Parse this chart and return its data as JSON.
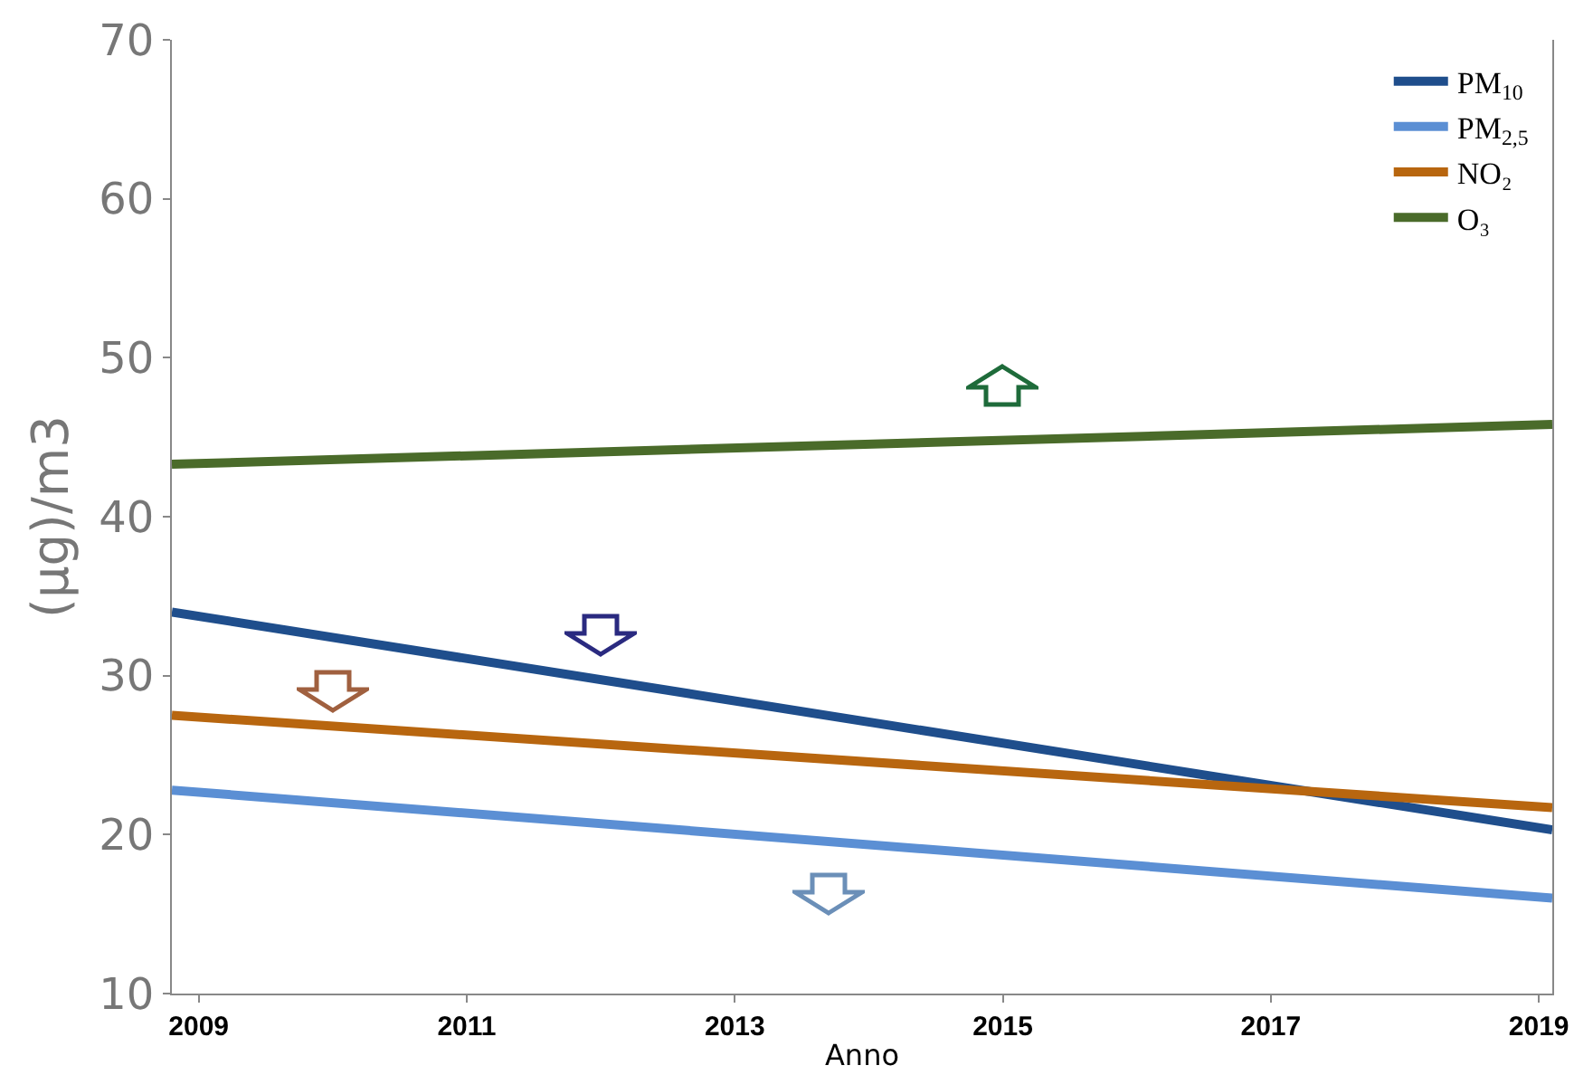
{
  "chart_data": {
    "type": "line",
    "xlabel": "Anno",
    "ylabel": "(μg)/m3",
    "x": [
      2008.8,
      2019.1
    ],
    "series": [
      {
        "name": "PM$_{10}$",
        "color": "#1f4e8c",
        "values": [
          34,
          20.3
        ]
      },
      {
        "name": "PM$_{2,5}$",
        "color": "#5b8fd4",
        "values": [
          22.8,
          16
        ]
      },
      {
        "name": "NO₂",
        "color": "#b8660f",
        "values": [
          27.5,
          21.7
        ]
      },
      {
        "name": "O₃",
        "color": "#4a6b2a",
        "values": [
          43.3,
          45.8
        ]
      }
    ],
    "xlim": [
      2008.8,
      2019.1
    ],
    "xticks": [
      2009,
      2011,
      2013,
      2015,
      2017,
      2019
    ],
    "ylim": [
      10,
      70
    ],
    "yticks": [
      10,
      20,
      30,
      40,
      50,
      60,
      70
    ],
    "grid": false,
    "legend": "top right",
    "marker": "none",
    "line_style": "solid"
  }
}
